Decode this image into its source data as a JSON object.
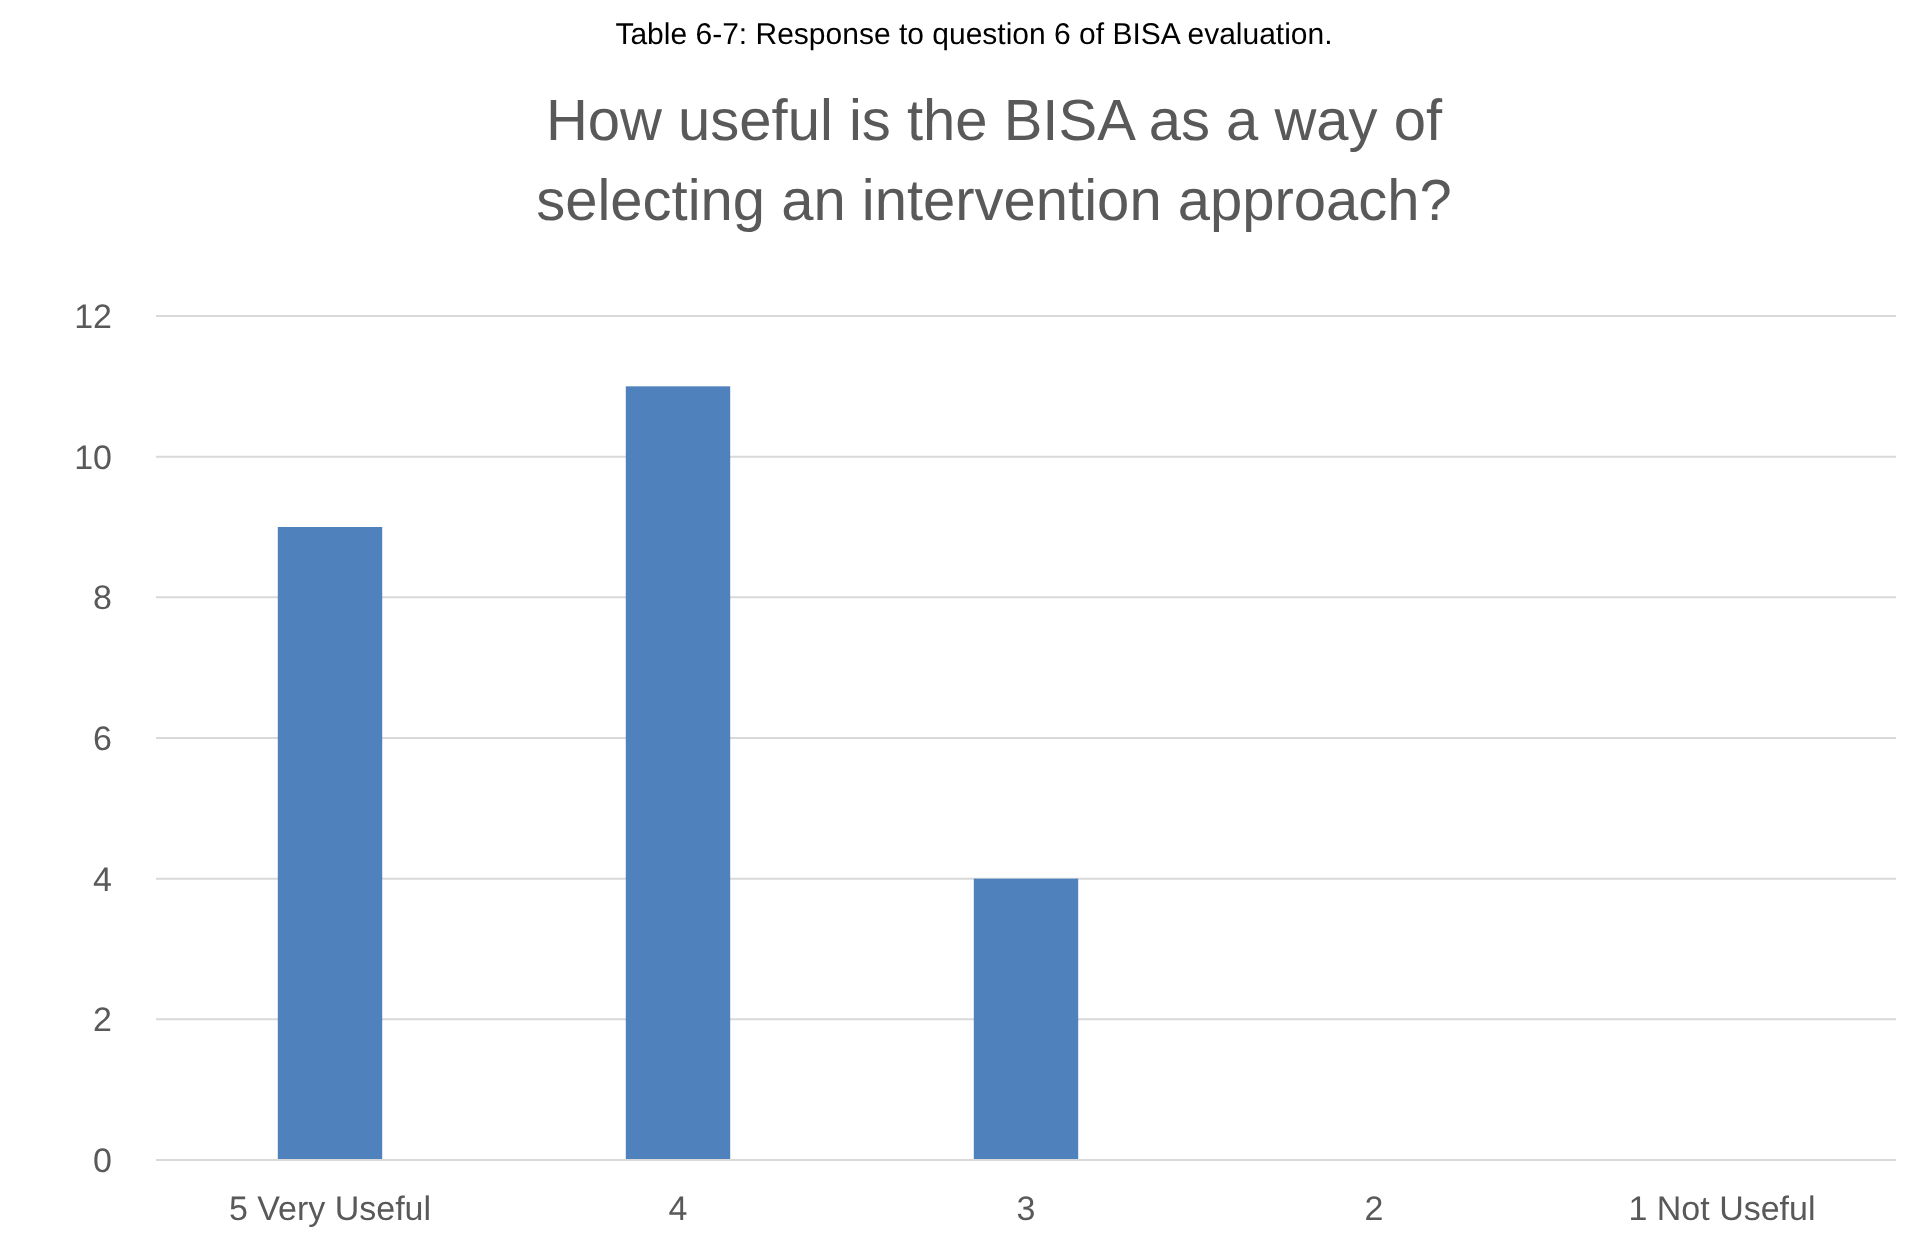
{
  "chart_data": {
    "type": "bar",
    "title": "How useful is the BISA as a way of selecting an intervention approach?",
    "subtitle": "Table 6-7: Response to question 6 of BISA evaluation.",
    "categories": [
      "5 Very Useful",
      "4",
      "3",
      "2",
      "1 Not Useful"
    ],
    "values": [
      9,
      11,
      4,
      0,
      0
    ],
    "color": "#4f81bd",
    "ylim": [
      0,
      12
    ],
    "yticks": [
      0,
      2,
      4,
      6,
      8,
      10,
      12
    ],
    "grid": "y"
  }
}
